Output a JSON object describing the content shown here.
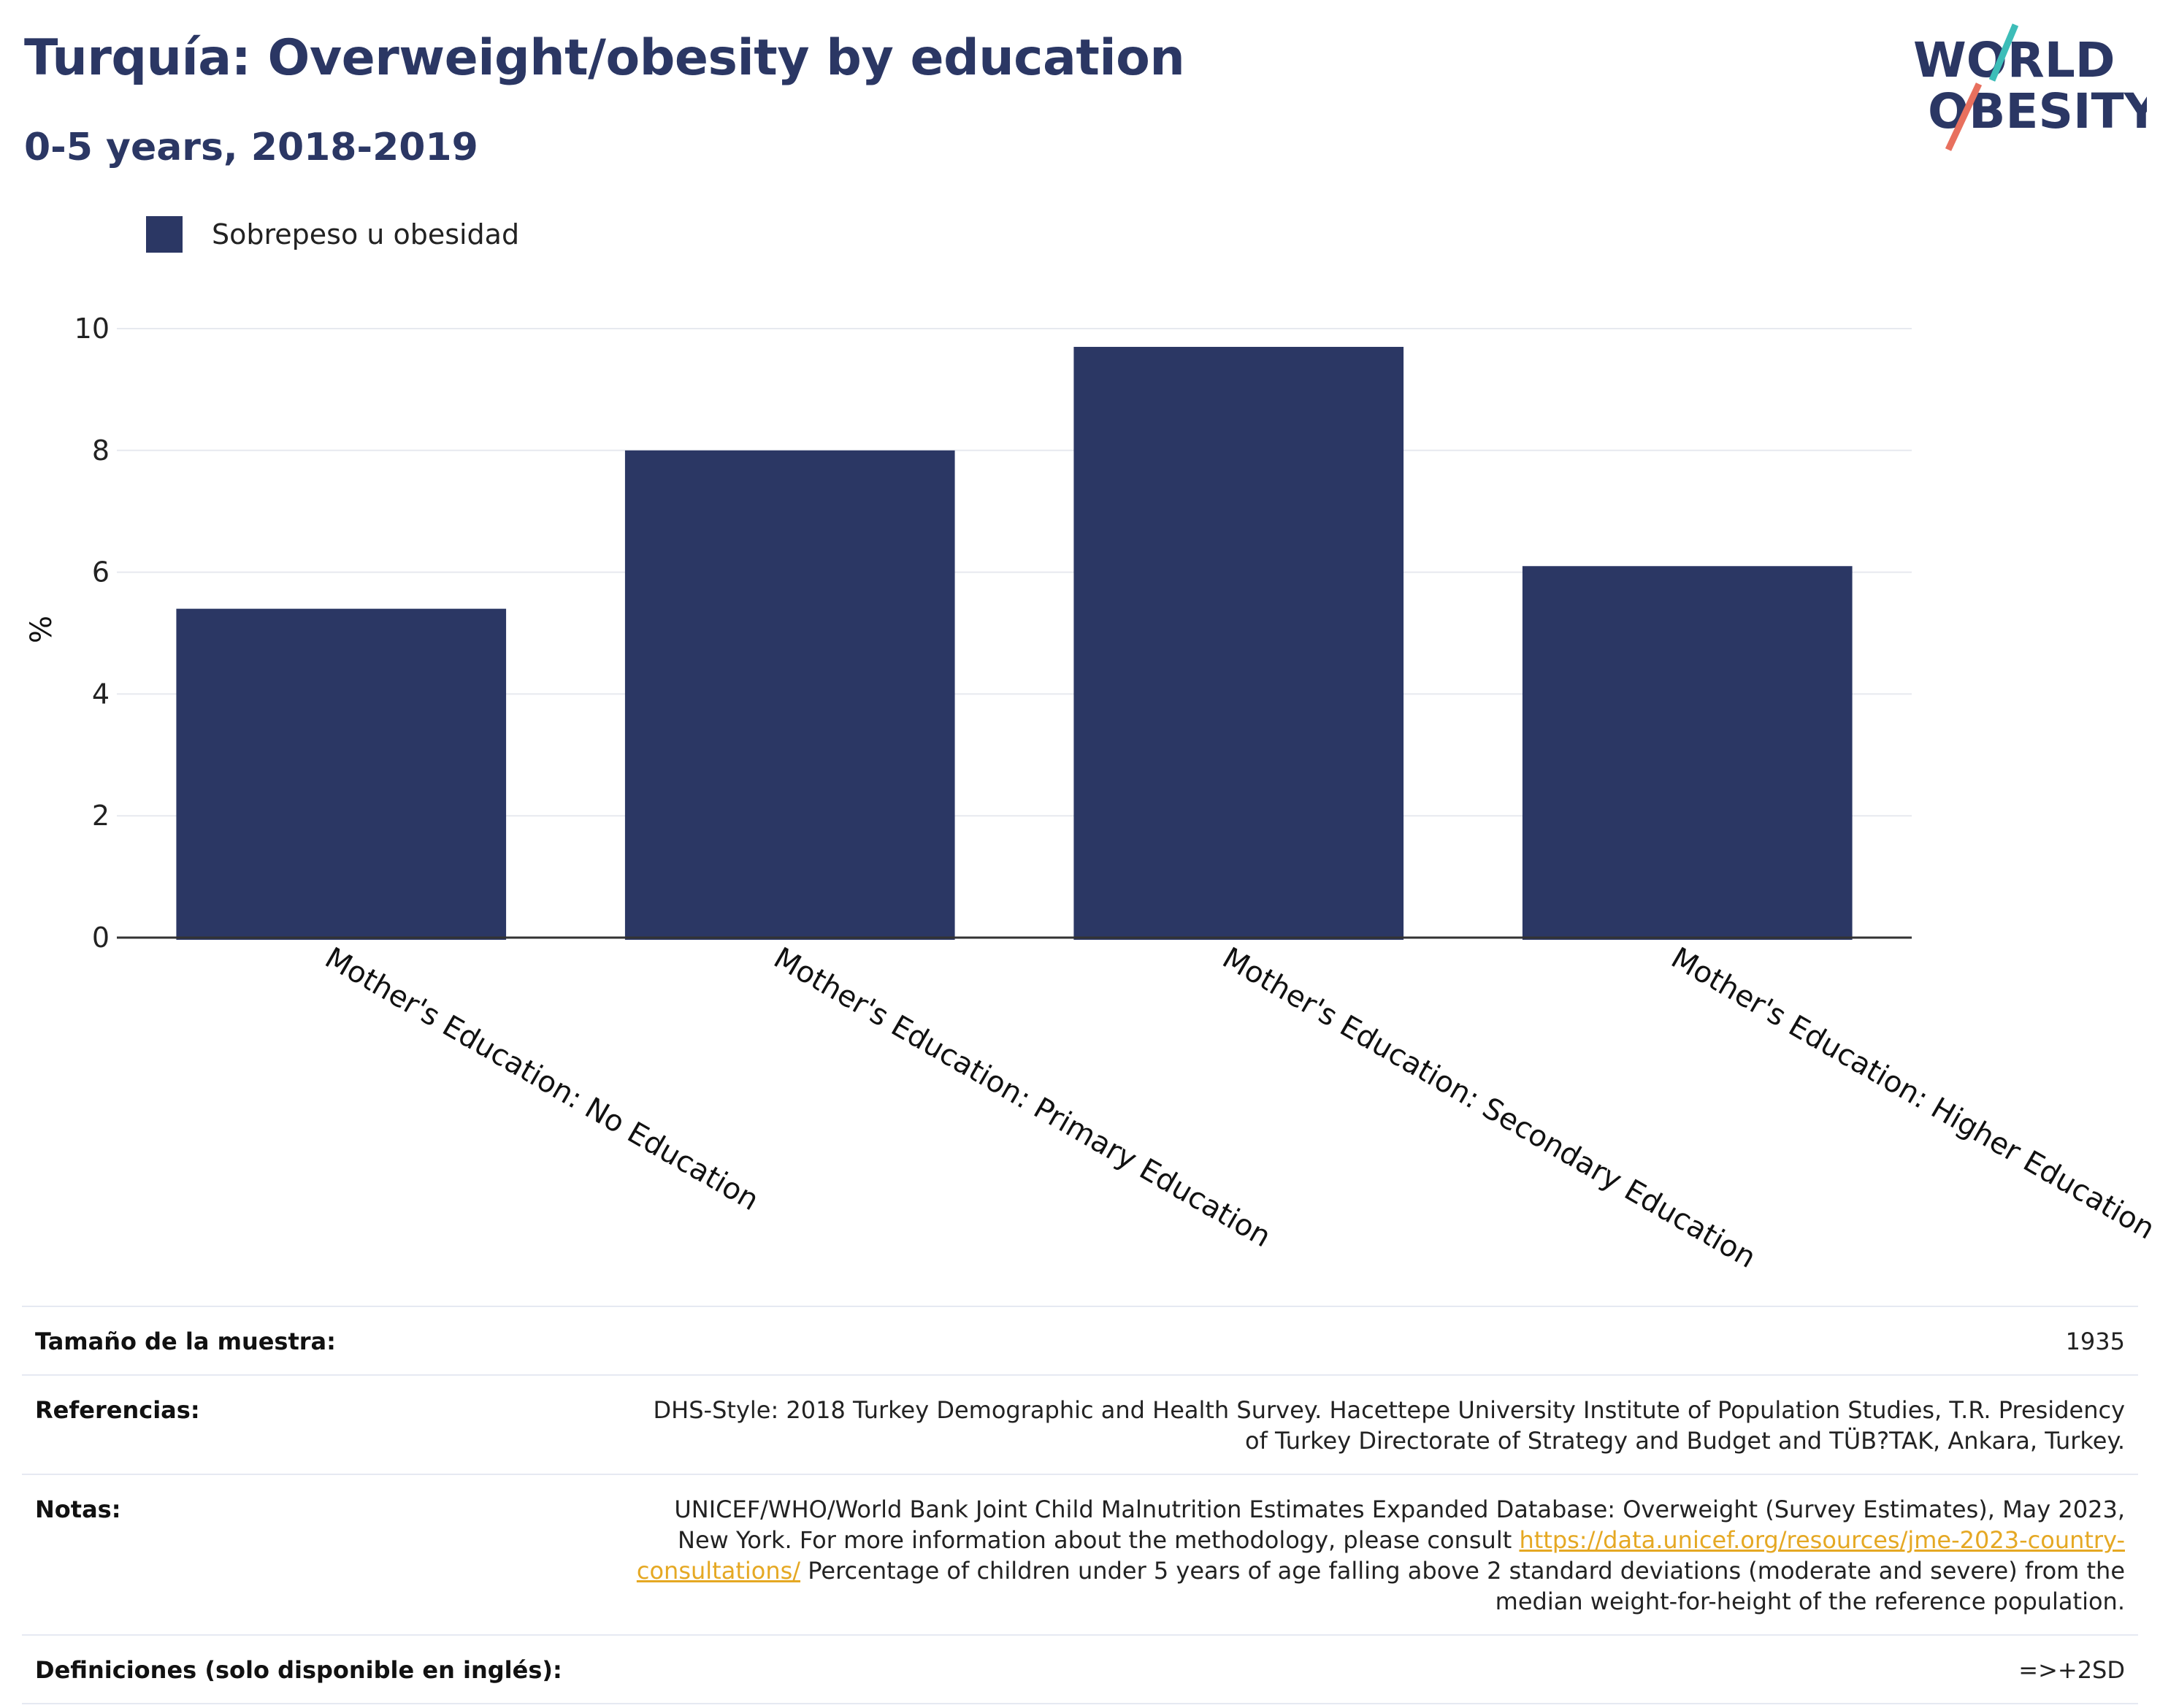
{
  "header": {
    "title": "Turquía: Overweight/obesity by education",
    "subtitle": "0-5 years, 2018-2019"
  },
  "logo": {
    "line1": "WORLD",
    "line2": "OBESITY",
    "accent_teal": "#3dbdb8",
    "accent_coral": "#e8705e",
    "text_color": "#2b3764"
  },
  "chart_data": {
    "type": "bar",
    "categories": [
      "Mother's Education: No Education",
      "Mother's Education: Primary Education",
      "Mother's Education: Secondary Education",
      "Mother's Education: Higher Education"
    ],
    "series": [
      {
        "name": "Sobrepeso u obesidad",
        "values": [
          5.4,
          8.0,
          9.7,
          6.1
        ],
        "color": "#2b3764"
      }
    ],
    "ylabel": "%",
    "ylim": [
      0,
      10
    ],
    "yticks": [
      0,
      2,
      4,
      6,
      8,
      10
    ],
    "grid": true,
    "legend_position": "top-left"
  },
  "info": {
    "sample_label": "Tamaño de la muestra:",
    "sample_value": "1935",
    "refs_label": "Referencias:",
    "refs_value": "DHS-Style: 2018 Turkey Demographic and Health Survey. Hacettepe University Institute of Population Studies, T.R. Presidency of Turkey Directorate of Strategy and Budget and TÜB?TAK, Ankara, Turkey.",
    "notes_label": "Notas:",
    "notes_text1": "UNICEF/WHO/World Bank Joint Child Malnutrition Estimates Expanded Database: Overweight (Survey Estimates), May 2023, New York. For more information about the methodology, please consult",
    "notes_link": "https://data.unicef.org/resources/jme-2023-country-consultations/",
    "notes_text2": "Percentage of children under 5 years of age falling above 2 standard deviations (moderate and severe) from the median weight-for-height of the reference population.",
    "defs_label": "Definiciones (solo disponible en inglés):",
    "defs_value": "=>+2SD"
  }
}
